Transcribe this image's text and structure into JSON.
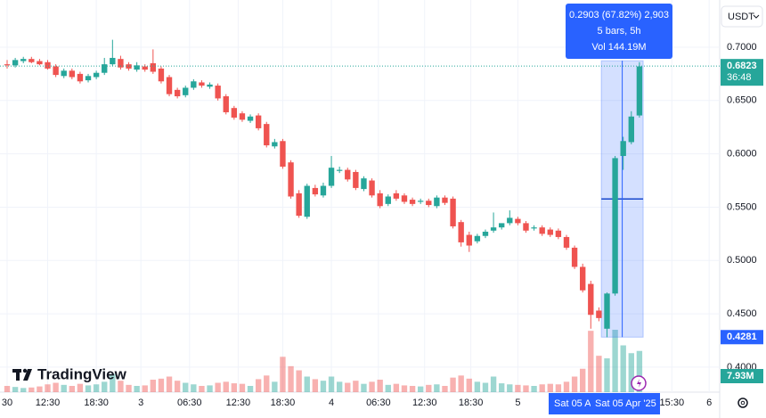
{
  "chart_data": {
    "type": "candlestick",
    "currency": "USDT",
    "logo": "TradingView",
    "open": [
      0.684,
      0.683,
      0.687,
      0.689,
      0.687,
      0.686,
      0.682,
      0.673,
      0.678,
      0.675,
      0.669,
      0.672,
      0.676,
      0.684,
      0.689,
      0.684,
      0.679,
      0.682,
      0.685,
      0.68,
      0.672,
      0.66,
      0.655,
      0.662,
      0.667,
      0.663,
      0.664,
      0.654,
      0.643,
      0.638,
      0.631,
      0.636,
      0.628,
      0.607,
      0.612,
      0.592,
      0.563,
      0.541,
      0.568,
      0.561,
      0.57,
      0.584,
      0.585,
      0.583,
      0.567,
      0.575,
      0.563,
      0.553,
      0.563,
      0.561,
      0.557,
      0.555,
      0.556,
      0.551,
      0.559,
      0.558,
      0.536,
      0.524,
      0.518,
      0.523,
      0.528,
      0.531,
      0.535,
      0.539,
      0.535,
      0.53,
      0.531,
      0.529,
      0.528,
      0.522,
      0.512,
      0.494,
      0.478,
      0.453,
      0.436,
      0.469,
      0.598,
      0.611,
      0.636
    ],
    "high": [
      0.688,
      0.69,
      0.691,
      0.691,
      0.689,
      0.688,
      0.684,
      0.68,
      0.68,
      0.677,
      0.675,
      0.678,
      0.69,
      0.707,
      0.692,
      0.686,
      0.686,
      0.684,
      0.698,
      0.682,
      0.674,
      0.662,
      0.664,
      0.67,
      0.669,
      0.667,
      0.666,
      0.656,
      0.645,
      0.64,
      0.637,
      0.638,
      0.63,
      0.614,
      0.614,
      0.594,
      0.566,
      0.572,
      0.571,
      0.573,
      0.598,
      0.588,
      0.587,
      0.585,
      0.579,
      0.577,
      0.566,
      0.562,
      0.566,
      0.563,
      0.559,
      0.558,
      0.558,
      0.561,
      0.561,
      0.56,
      0.538,
      0.527,
      0.525,
      0.529,
      0.545,
      0.534,
      0.547,
      0.541,
      0.537,
      0.533,
      0.533,
      0.531,
      0.53,
      0.524,
      0.514,
      0.497,
      0.481,
      0.456,
      0.47,
      0.598,
      0.616,
      0.64,
      0.686
    ],
    "low": [
      0.68,
      0.681,
      0.685,
      0.685,
      0.683,
      0.679,
      0.672,
      0.671,
      0.67,
      0.666,
      0.667,
      0.67,
      0.674,
      0.682,
      0.679,
      0.678,
      0.677,
      0.677,
      0.675,
      0.666,
      0.654,
      0.652,
      0.653,
      0.66,
      0.662,
      0.661,
      0.65,
      0.637,
      0.632,
      0.63,
      0.629,
      0.622,
      0.606,
      0.605,
      0.586,
      0.558,
      0.54,
      0.539,
      0.56,
      0.559,
      0.568,
      0.582,
      0.574,
      0.566,
      0.565,
      0.559,
      0.549,
      0.551,
      0.556,
      0.553,
      0.551,
      0.553,
      0.55,
      0.549,
      0.552,
      0.53,
      0.513,
      0.508,
      0.516,
      0.521,
      0.526,
      0.529,
      0.533,
      0.533,
      0.526,
      0.528,
      0.523,
      0.522,
      0.52,
      0.51,
      0.492,
      0.47,
      0.436,
      0.443,
      0.428,
      0.467,
      0.585,
      0.609,
      0.634
    ],
    "close": [
      0.683,
      0.688,
      0.689,
      0.686,
      0.684,
      0.68,
      0.674,
      0.678,
      0.672,
      0.668,
      0.673,
      0.676,
      0.684,
      0.69,
      0.681,
      0.68,
      0.683,
      0.679,
      0.677,
      0.668,
      0.656,
      0.654,
      0.662,
      0.668,
      0.664,
      0.665,
      0.652,
      0.639,
      0.634,
      0.632,
      0.635,
      0.624,
      0.608,
      0.611,
      0.588,
      0.56,
      0.542,
      0.57,
      0.562,
      0.57,
      0.587,
      0.585,
      0.576,
      0.568,
      0.577,
      0.561,
      0.551,
      0.56,
      0.558,
      0.555,
      0.553,
      0.556,
      0.552,
      0.559,
      0.554,
      0.532,
      0.517,
      0.514,
      0.523,
      0.527,
      0.531,
      0.535,
      0.54,
      0.535,
      0.528,
      0.531,
      0.525,
      0.524,
      0.522,
      0.512,
      0.494,
      0.472,
      0.449,
      0.446,
      0.469,
      0.596,
      0.612,
      0.635,
      0.682
    ],
    "volume": [
      1.2,
      1.0,
      0.8,
      0.9,
      1.1,
      1.5,
      1.8,
      1.4,
      1.2,
      1.6,
      1.3,
      1.5,
      2.0,
      3.5,
      2.2,
      1.4,
      1.2,
      1.3,
      2.4,
      2.6,
      3.0,
      2.2,
      1.8,
      1.5,
      1.2,
      1.3,
      1.8,
      2.0,
      1.7,
      1.6,
      1.2,
      2.5,
      3.2,
      2.0,
      6.8,
      5.0,
      4.2,
      3.0,
      2.5,
      2.2,
      3.0,
      2.0,
      1.8,
      2.2,
      1.6,
      2.0,
      2.4,
      1.4,
      1.6,
      1.3,
      1.2,
      1.1,
      1.4,
      1.5,
      1.2,
      2.8,
      3.2,
      2.6,
      2.0,
      1.8,
      3.0,
      1.7,
      1.5,
      1.4,
      1.3,
      1.2,
      1.5,
      1.6,
      1.5,
      2.0,
      3.0,
      4.5,
      11.8,
      7.0,
      6.5,
      12.0,
      9.0,
      7.5,
      7.93
    ],
    "last_volume": "7.93M",
    "up_color": "#26a69a",
    "down_color": "#ef5350",
    "xlim": [
      -0.88,
      87.9
    ],
    "xticks": [
      {
        "value": 0,
        "label": "30"
      },
      {
        "value": 5,
        "label": "12:30"
      },
      {
        "value": 11,
        "label": "18:30"
      },
      {
        "value": 16.5,
        "label": "3"
      },
      {
        "value": 22.5,
        "label": "06:30"
      },
      {
        "value": 28.5,
        "label": "12:30"
      },
      {
        "value": 34,
        "label": "18:30"
      },
      {
        "value": 40,
        "label": "4"
      },
      {
        "value": 45.8,
        "label": "06:30"
      },
      {
        "value": 51.5,
        "label": "12:30"
      },
      {
        "value": 57.2,
        "label": "18:30"
      },
      {
        "value": 63,
        "label": "5"
      },
      {
        "value": 82,
        "label": "15:30"
      },
      {
        "value": 86.6,
        "label": "6"
      }
    ],
    "crosshair_labels": [
      "Sat 05 A",
      "Sat 05 Apr '25"
    ],
    "ylim": [
      0.3765,
      0.7443
    ],
    "yticks": [
      {
        "value": 0.4,
        "label": "0.4000"
      },
      {
        "value": 0.45,
        "label": "0.4500"
      },
      {
        "value": 0.5,
        "label": "0.5000"
      },
      {
        "value": 0.55,
        "label": "0.5500"
      },
      {
        "value": 0.6,
        "label": "0.6000"
      },
      {
        "value": 0.65,
        "label": "0.6500"
      },
      {
        "value": 0.7,
        "label": "0.7000"
      }
    ],
    "last_price": 0.6823,
    "countdown": "36:48",
    "measure_low": 0.4281,
    "tooltip": {
      "change": "0.2903 (67.82%) 2,903",
      "bars": "5 bars, 5h",
      "volume": "Vol 144.19M"
    }
  }
}
